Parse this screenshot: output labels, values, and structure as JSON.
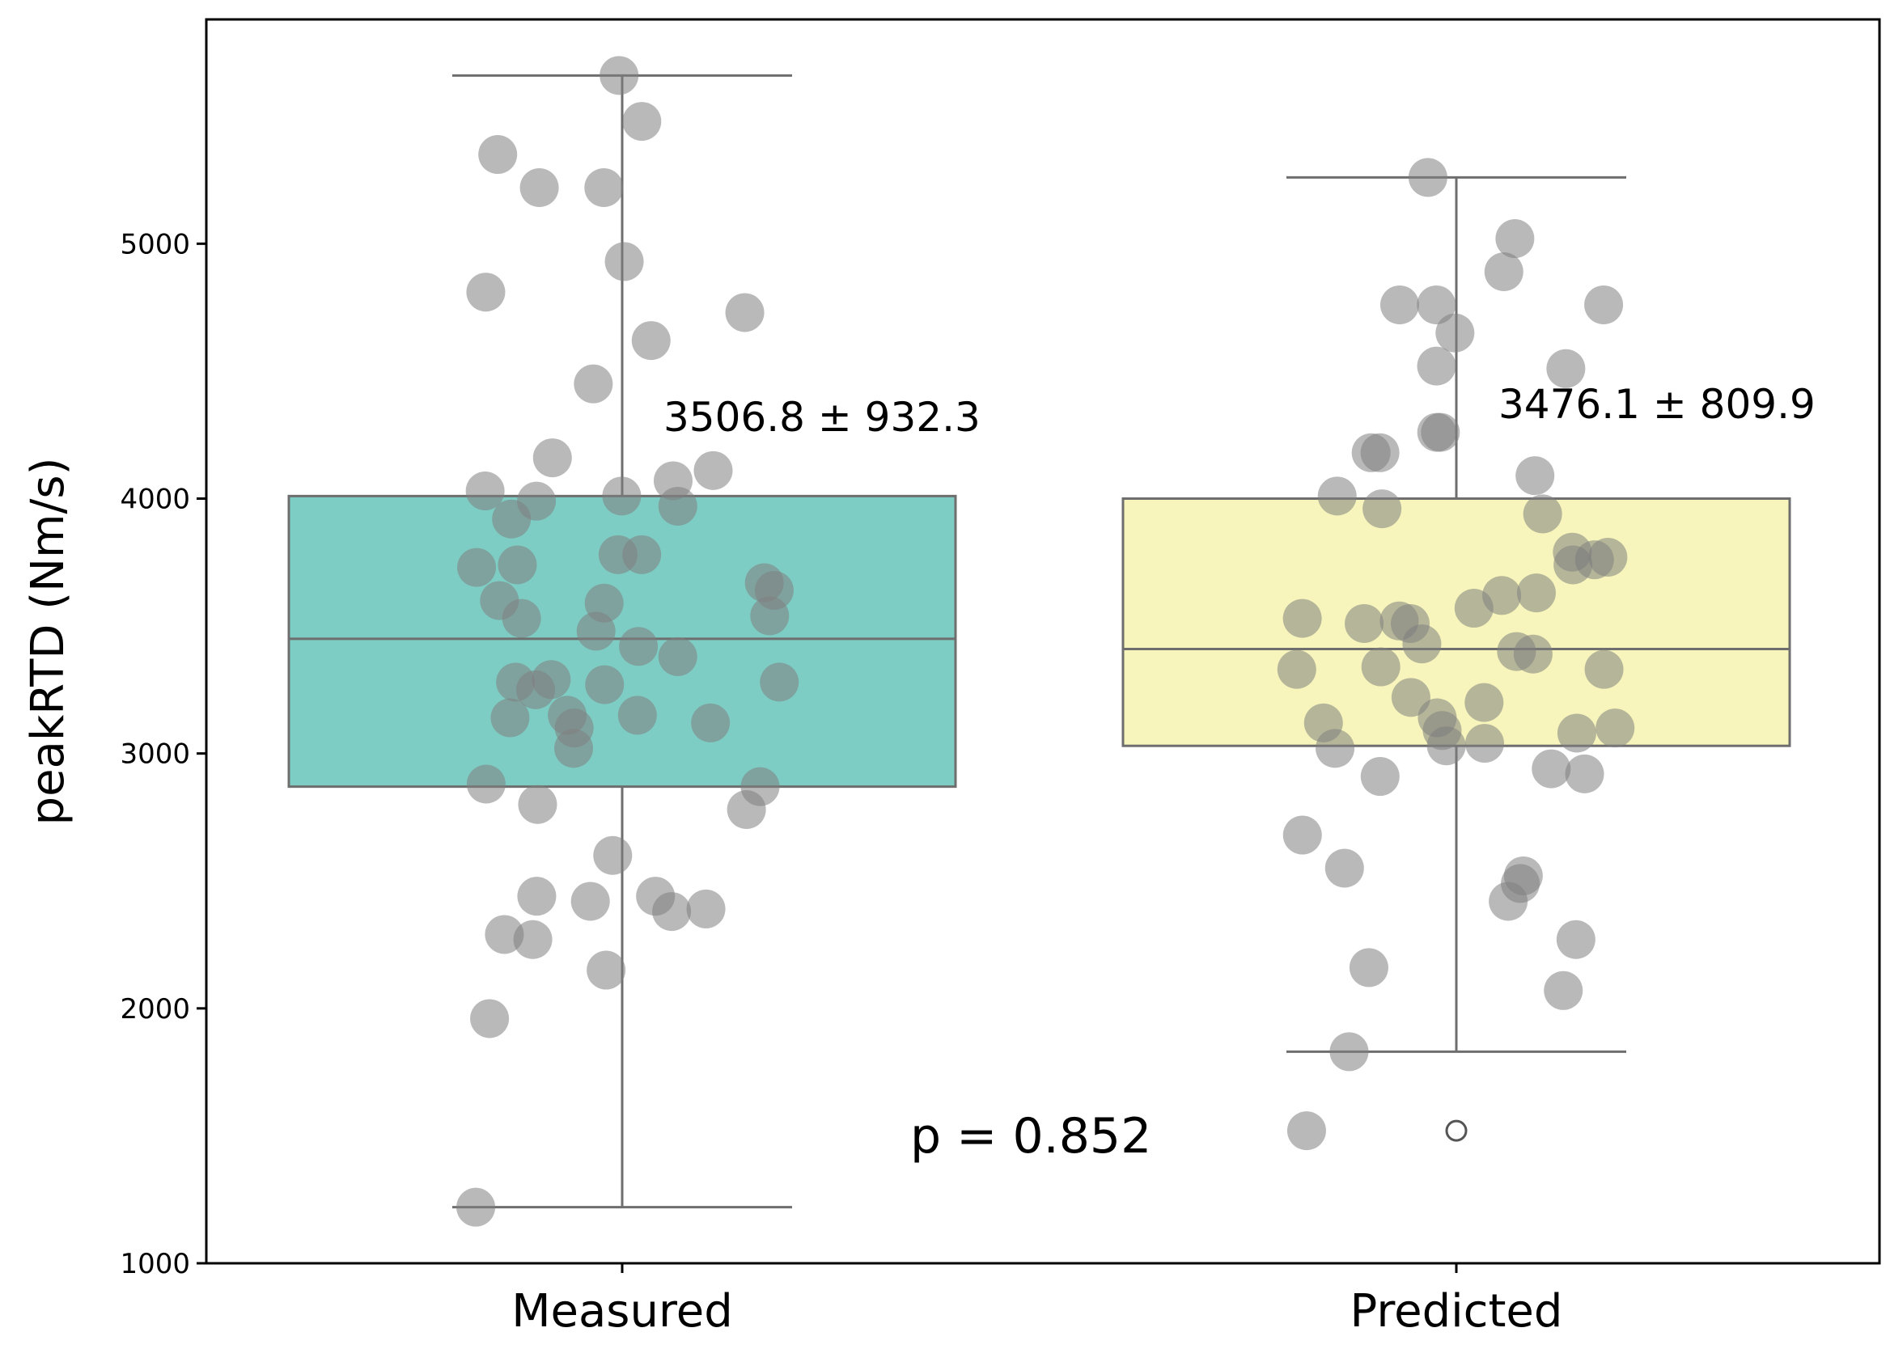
{
  "chart_data": {
    "type": "box",
    "title": "",
    "xlabel": "",
    "ylabel": "peakRTD (Nm/s)",
    "ylim": [
      1000,
      5880
    ],
    "yticks": [
      1000,
      2000,
      3000,
      4000,
      5000
    ],
    "grid": false,
    "p_value_label": "p = 0.852",
    "groups": [
      {
        "name": "Measured",
        "color": "#7ecdc4",
        "stat_label": "3506.8 ± 932.3",
        "box": {
          "whisker_low": 1220,
          "q1": 2870,
          "median": 3450,
          "q3": 4010,
          "whisker_high": 5660
        },
        "outliers": [],
        "points": [
          5660,
          5480,
          5350,
          5220,
          5220,
          4930,
          4810,
          4730,
          4620,
          4450,
          4160,
          4110,
          4070,
          4030,
          4010,
          3990,
          3970,
          3920,
          3780,
          3780,
          3740,
          3730,
          3670,
          3640,
          3600,
          3590,
          3540,
          3530,
          3480,
          3420,
          3380,
          3290,
          3280,
          3280,
          3270,
          3250,
          3150,
          3150,
          3140,
          3120,
          3100,
          3020,
          2880,
          2870,
          2800,
          2780,
          2600,
          2440,
          2440,
          2420,
          2390,
          2380,
          2290,
          2270,
          2150,
          1960,
          1220
        ]
      },
      {
        "name": "Predicted",
        "color": "#f7f5bb",
        "stat_label": "3476.1 ± 809.9",
        "box": {
          "whisker_low": 1830,
          "q1": 3030,
          "median": 3410,
          "q3": 4000,
          "whisker_high": 5260
        },
        "outliers": [
          1520
        ],
        "points": [
          5260,
          5020,
          4890,
          4760,
          4760,
          4760,
          4650,
          4520,
          4510,
          4260,
          4260,
          4180,
          4180,
          4090,
          4010,
          3960,
          3940,
          3790,
          3770,
          3760,
          3740,
          3630,
          3620,
          3570,
          3530,
          3520,
          3510,
          3510,
          3430,
          3400,
          3390,
          3340,
          3330,
          3330,
          3220,
          3200,
          3140,
          3120,
          3100,
          3090,
          3080,
          3040,
          3030,
          3020,
          2940,
          2920,
          2910,
          2680,
          2550,
          2520,
          2490,
          2420,
          2270,
          2160,
          2070,
          1830,
          1520
        ]
      }
    ]
  }
}
